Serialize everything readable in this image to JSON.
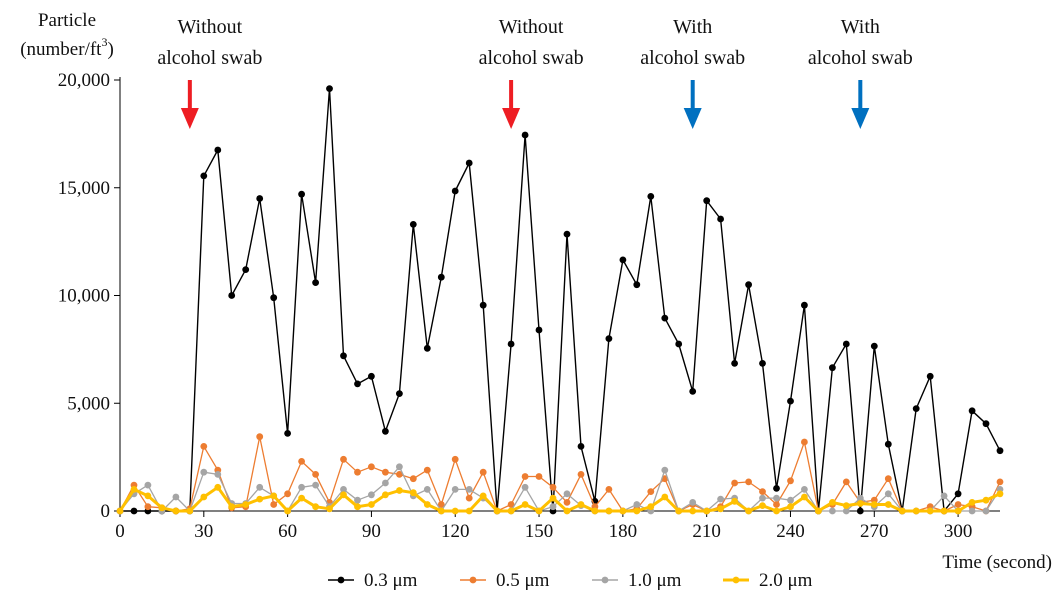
{
  "chart_data": {
    "type": "line",
    "title": "",
    "ylabel": "Particle",
    "ylabel_unit": "(number/ft",
    "ylabel_unit_sup": "3",
    "ylabel_unit_close": ")",
    "xlabel": "Time (second)",
    "xlim": [
      0,
      315
    ],
    "ylim": [
      0,
      20000
    ],
    "x_ticks": [
      0,
      30,
      60,
      90,
      120,
      150,
      180,
      210,
      240,
      270,
      300
    ],
    "x_tick_labels": [
      "0",
      "30",
      "60",
      "90",
      "120",
      "150",
      "180",
      "210",
      "240",
      "270",
      "300"
    ],
    "y_ticks": [
      0,
      5000,
      10000,
      15000,
      20000
    ],
    "y_tick_labels": [
      "0",
      "5,000",
      "10,000",
      "15,000",
      "20,000"
    ],
    "grid": false,
    "legend_position": "bottom-center",
    "x": [
      0,
      5,
      10,
      15,
      20,
      25,
      30,
      35,
      40,
      45,
      50,
      55,
      60,
      65,
      70,
      75,
      80,
      85,
      90,
      95,
      100,
      105,
      110,
      115,
      120,
      125,
      130,
      135,
      140,
      145,
      150,
      155,
      160,
      165,
      170,
      175,
      180,
      185,
      190,
      195,
      200,
      205,
      210,
      215,
      220,
      225,
      230,
      235,
      240,
      245,
      250,
      255,
      260,
      265,
      270,
      275,
      280,
      285,
      290,
      295,
      300,
      305,
      310,
      315
    ],
    "series": [
      {
        "name": "0.3 μm",
        "color": "#000000",
        "values": [
          0,
          0,
          0,
          0,
          0,
          0,
          15550,
          16750,
          10000,
          11200,
          14500,
          9900,
          3600,
          14700,
          10600,
          19600,
          7200,
          5900,
          6250,
          3700,
          5450,
          13300,
          7550,
          10850,
          14850,
          16150,
          9550,
          0,
          7750,
          17450,
          8400,
          0,
          12850,
          3000,
          450,
          8000,
          11650,
          10500,
          14600,
          8950,
          7750,
          5550,
          14400,
          13550,
          6850,
          10500,
          6850,
          1050,
          5100,
          9550,
          0,
          6650,
          7750,
          0,
          7650,
          3100,
          0,
          4750,
          6250,
          0,
          800,
          4650,
          4050,
          2800
        ]
      },
      {
        "name": "0.5 μm",
        "color": "#ED7D31",
        "values": [
          0,
          1200,
          200,
          150,
          0,
          100,
          3000,
          1900,
          150,
          200,
          3450,
          300,
          800,
          2300,
          1700,
          400,
          2400,
          1800,
          2050,
          1800,
          1700,
          1500,
          1900,
          300,
          2400,
          600,
          1800,
          0,
          300,
          1600,
          1600,
          1100,
          400,
          1700,
          200,
          1000,
          0,
          100,
          900,
          1500,
          0,
          300,
          0,
          200,
          1300,
          1350,
          900,
          300,
          1400,
          3200,
          0,
          300,
          1350,
          400,
          500,
          1500,
          0,
          0,
          200,
          0,
          300,
          200,
          0,
          1350
        ]
      },
      {
        "name": "1.0 μm",
        "color": "#A5A5A5",
        "values": [
          0,
          800,
          1200,
          0,
          650,
          0,
          1800,
          1700,
          350,
          350,
          1100,
          700,
          0,
          1100,
          1200,
          200,
          1000,
          500,
          750,
          1300,
          2050,
          700,
          1000,
          0,
          1000,
          1000,
          600,
          0,
          0,
          1100,
          0,
          200,
          800,
          250,
          0,
          0,
          0,
          300,
          0,
          1900,
          0,
          400,
          0,
          550,
          600,
          0,
          600,
          600,
          500,
          1000,
          0,
          0,
          0,
          600,
          200,
          800,
          0,
          0,
          0,
          700,
          0,
          0,
          0,
          1000
        ]
      },
      {
        "name": "2.0 μm",
        "color": "#FFC000",
        "values": [
          0,
          1000,
          700,
          150,
          0,
          0,
          650,
          1100,
          200,
          300,
          550,
          700,
          0,
          600,
          200,
          100,
          750,
          200,
          300,
          750,
          950,
          850,
          300,
          0,
          0,
          0,
          700,
          0,
          0,
          300,
          0,
          600,
          0,
          300,
          0,
          0,
          0,
          0,
          200,
          650,
          0,
          0,
          0,
          100,
          450,
          0,
          250,
          0,
          200,
          650,
          0,
          400,
          250,
          350,
          300,
          300,
          0,
          0,
          0,
          0,
          0,
          400,
          500,
          800
        ]
      }
    ],
    "annotations": [
      {
        "line1": "Without",
        "line2": "alcohol swab",
        "x": 25,
        "arrow_color": "#EE1D23"
      },
      {
        "line1": "Without",
        "line2": "alcohol swab",
        "x": 140,
        "arrow_color": "#EE1D23"
      },
      {
        "line1": "With",
        "line2": "alcohol swab",
        "x": 205,
        "arrow_color": "#0070C0"
      },
      {
        "line1": "With",
        "line2": "alcohol swab",
        "x": 265,
        "arrow_color": "#0070C0"
      }
    ]
  }
}
